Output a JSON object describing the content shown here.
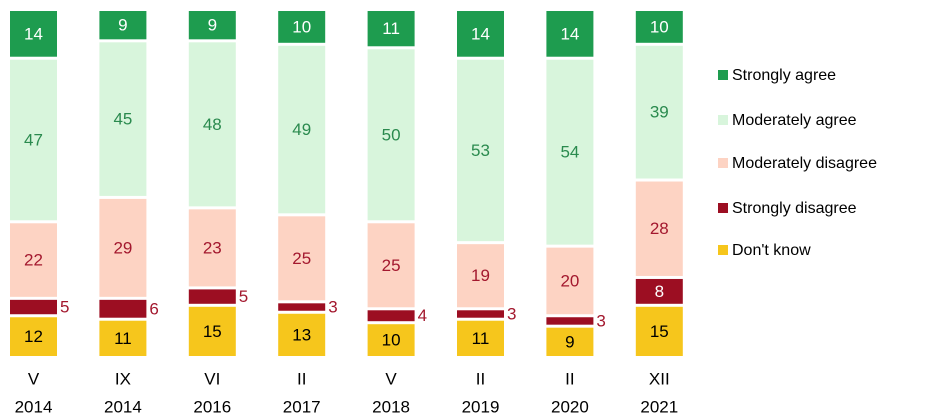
{
  "chart_data": {
    "type": "stacked_bar",
    "categories": [
      [
        "V",
        "2014"
      ],
      [
        "IX",
        "2014"
      ],
      [
        "VI",
        "2016"
      ],
      [
        "II",
        "2017"
      ],
      [
        "V",
        "2018"
      ],
      [
        "II",
        "2019"
      ],
      [
        "II",
        "2020"
      ],
      [
        "XII",
        "2021"
      ]
    ],
    "series": [
      {
        "name": "Strongly agree",
        "color": "#1e9c4f",
        "label_color": "#ffffff",
        "values": [
          14,
          9,
          9,
          10,
          11,
          14,
          14,
          10
        ]
      },
      {
        "name": "Moderately agree",
        "color": "#d8f5dc",
        "label_color": "#2a8a4e",
        "values": [
          47,
          45,
          48,
          49,
          50,
          53,
          54,
          39
        ]
      },
      {
        "name": "Moderately disagree",
        "color": "#fdd3c3",
        "label_color": "#a3182e",
        "values": [
          22,
          29,
          23,
          25,
          25,
          19,
          20,
          28
        ]
      },
      {
        "name": "Strongly disagree",
        "color": "#9c0e22",
        "label_color": "#ffffff",
        "values": [
          5,
          6,
          5,
          3,
          4,
          3,
          3,
          8
        ]
      },
      {
        "name": "Don't know",
        "color": "#f6c61c",
        "label_color": "#000000",
        "values": [
          12,
          11,
          15,
          13,
          10,
          11,
          9,
          15
        ]
      }
    ]
  }
}
